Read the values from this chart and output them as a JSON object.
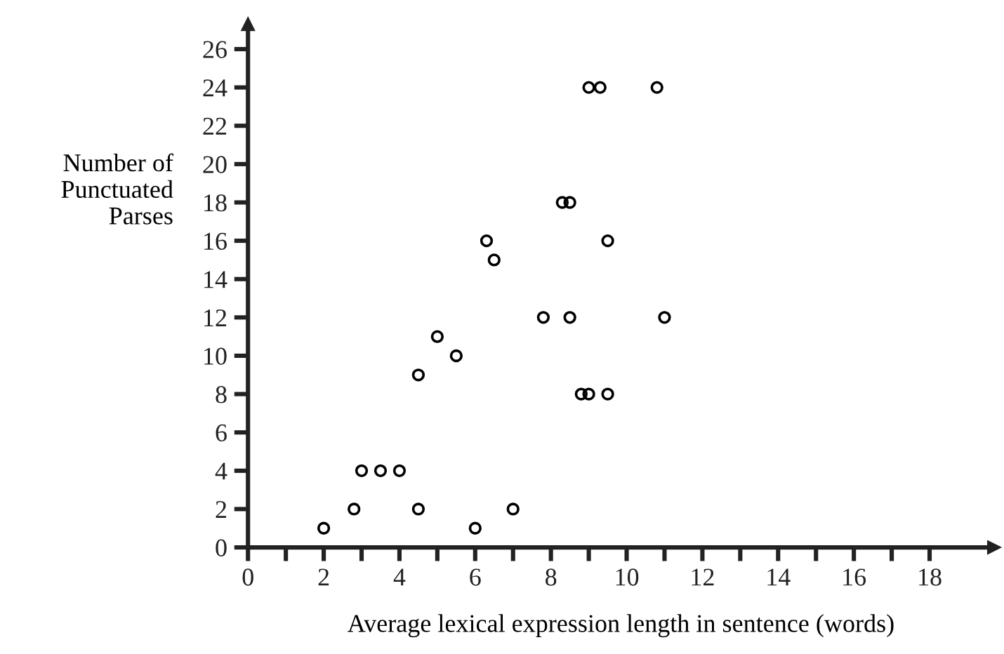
{
  "chart_data": {
    "type": "scatter",
    "xlabel": "Average lexical expression length in sentence (words)",
    "ylabel": "Number of\nPunctuated\nParses",
    "marker": "circle",
    "grid": false,
    "legend": false,
    "xlim": [
      0,
      19.7
    ],
    "ylim": [
      0,
      27.3
    ],
    "xticks": [
      0,
      {
        "value": 1,
        "label": null
      },
      2,
      {
        "value": 3,
        "label": null
      },
      4,
      {
        "value": 5,
        "label": null
      },
      6,
      {
        "value": 7,
        "label": null
      },
      8,
      {
        "value": 9,
        "label": null
      },
      10,
      {
        "value": 11,
        "label": null
      },
      12,
      {
        "value": 13,
        "label": null
      },
      14,
      {
        "value": 15,
        "label": null
      },
      16,
      {
        "value": 17,
        "label": null
      },
      18
    ],
    "yticks": [
      0,
      2,
      4,
      6,
      8,
      10,
      12,
      14,
      16,
      18,
      20,
      22,
      24,
      26
    ],
    "series": [
      {
        "color": "#000000",
        "x": [
          2,
          2.8,
          3,
          3.5,
          4,
          4.5,
          4.5,
          5,
          5.5,
          6,
          6.3,
          6.5,
          7,
          7.8,
          8.5,
          8.3,
          8.5,
          9.5,
          9,
          9.3,
          10.8,
          11,
          8.8,
          9,
          9.5
        ],
        "values": [
          1,
          2,
          4,
          4,
          4,
          2,
          9,
          11,
          10,
          1,
          16,
          15,
          2,
          12,
          12,
          18,
          18,
          16,
          24,
          24,
          24,
          12,
          8,
          8,
          8
        ]
      }
    ]
  }
}
